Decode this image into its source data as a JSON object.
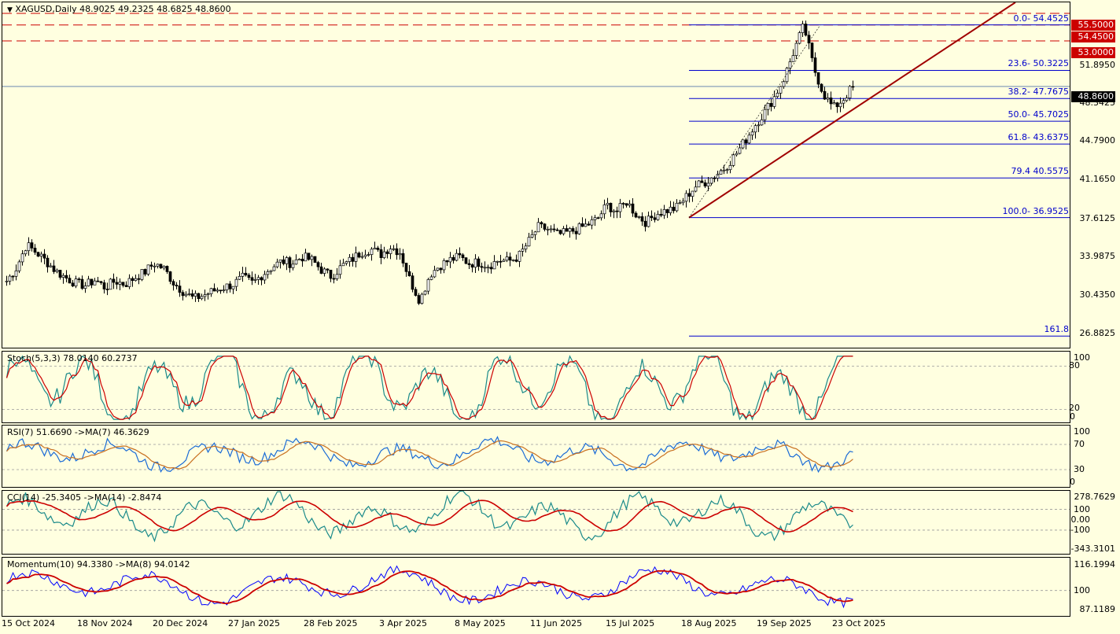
{
  "symbol_header": {
    "symbol": "XAGUSD",
    "timeframe": "Daily",
    "ohlc": "48.9025 49.2325 48.6825 48.8600",
    "text": "XAGUSD,Daily  48.9025 49.2325 48.6825 48.8600"
  },
  "price_scale": [
    "55.5000",
    "54.4500",
    "53.0000",
    "51.8950",
    "48.3425",
    "44.7900",
    "41.1650",
    "37.6125",
    "33.9875",
    "30.4350",
    "26.8825"
  ],
  "price_badges": {
    "level1": "55.5000",
    "level2": "54.4500",
    "level3": "53.0000",
    "current": "48.8600"
  },
  "fib_levels": [
    {
      "label": "0.0- 54.4525",
      "price": 54.4525
    },
    {
      "label": "23.6- 50.3225",
      "price": 50.3225
    },
    {
      "label": "38.2- 47.7675",
      "price": 47.7675
    },
    {
      "label": "50.0- 45.7025",
      "price": 45.7025
    },
    {
      "label": "61.8- 43.6375",
      "price": 43.6375
    },
    {
      "label": "79.4 40.5575",
      "price": 40.5575
    },
    {
      "label": "100.0- 36.9525",
      "price": 36.9525
    },
    {
      "label": "161.8",
      "price": 26.2
    }
  ],
  "stoch": {
    "label": "Stoch(5,3,3) 78.0140 60.2737",
    "scale": [
      "100",
      "80",
      "20",
      "0"
    ]
  },
  "rsi": {
    "label": "RSI(7) 51.6690  ->MA(7) 46.3629",
    "scale": [
      "100",
      "70",
      "30",
      "0"
    ]
  },
  "cci": {
    "label": "CCI(14) -25.3405  ->MA(14) -2.8474",
    "scale": [
      "278.7629",
      "100",
      "0.00",
      "-100",
      "-343.3101"
    ]
  },
  "momentum": {
    "label": "Momentum(10) 94.3380  ->MA(8) 94.0142",
    "scale": [
      "116.1994",
      "100",
      "87.1189"
    ]
  },
  "date_axis": [
    "15 Oct 2024",
    "18 Nov 2024",
    "20 Dec 2024",
    "27 Jan 2025",
    "28 Feb 2025",
    "3 Apr 2025",
    "8 May 2025",
    "11 Jun 2025",
    "15 Jul 2025",
    "18 Aug 2025",
    "19 Sep 2025",
    "23 Oct 2025"
  ],
  "colors": {
    "background": "#ffffe0",
    "candle_up": "#ffffff",
    "candle_down": "#000000",
    "fib": "#0000cc",
    "trendline": "#a00000",
    "resistance": "#cc0000",
    "osc_main": "#1a8a8a",
    "osc_signal": "#cc0000",
    "rsi_signal": "#c87020",
    "momentum_main": "#0000ff"
  },
  "chart_data": {
    "type": "candlestick",
    "ylim": [
      25.0,
      56.5
    ],
    "close_path": [
      31.2,
      32.4,
      34.5,
      33.8,
      33.0,
      32.1,
      31.5,
      31.0,
      30.8,
      31.3,
      30.6,
      31.2,
      30.9,
      31.5,
      32.0,
      32.8,
      32.3,
      31.0,
      30.2,
      29.6,
      29.9,
      30.3,
      30.6,
      30.9,
      31.5,
      31.0,
      31.8,
      32.5,
      33.0,
      32.8,
      33.4,
      33.1,
      32.2,
      31.6,
      32.5,
      33.1,
      33.8,
      34.1,
      33.6,
      34.3,
      33.8,
      31.2,
      29.4,
      31.8,
      32.6,
      33.1,
      33.4,
      32.8,
      32.9,
      32.6,
      33.1,
      33.0,
      33.4,
      34.7,
      36.1,
      35.9,
      35.4,
      35.6,
      35.9,
      36.3,
      36.8,
      38.1,
      37.5,
      38.4,
      37.2,
      36.5,
      37.3,
      37.6,
      37.8,
      38.8,
      39.8,
      40.2,
      40.8,
      41.5,
      42.6,
      43.9,
      45.3,
      46.5,
      47.9,
      49.6,
      52.1,
      54.4,
      50.6,
      48.2,
      46.9,
      47.7,
      48.86
    ],
    "resistance_levels": [
      55.5,
      54.45,
      53.0
    ],
    "trendline": {
      "from": {
        "price": 36.95,
        "date": "Aug 2025"
      },
      "to": {
        "price": 57.0,
        "date": "Nov 2025"
      }
    }
  }
}
